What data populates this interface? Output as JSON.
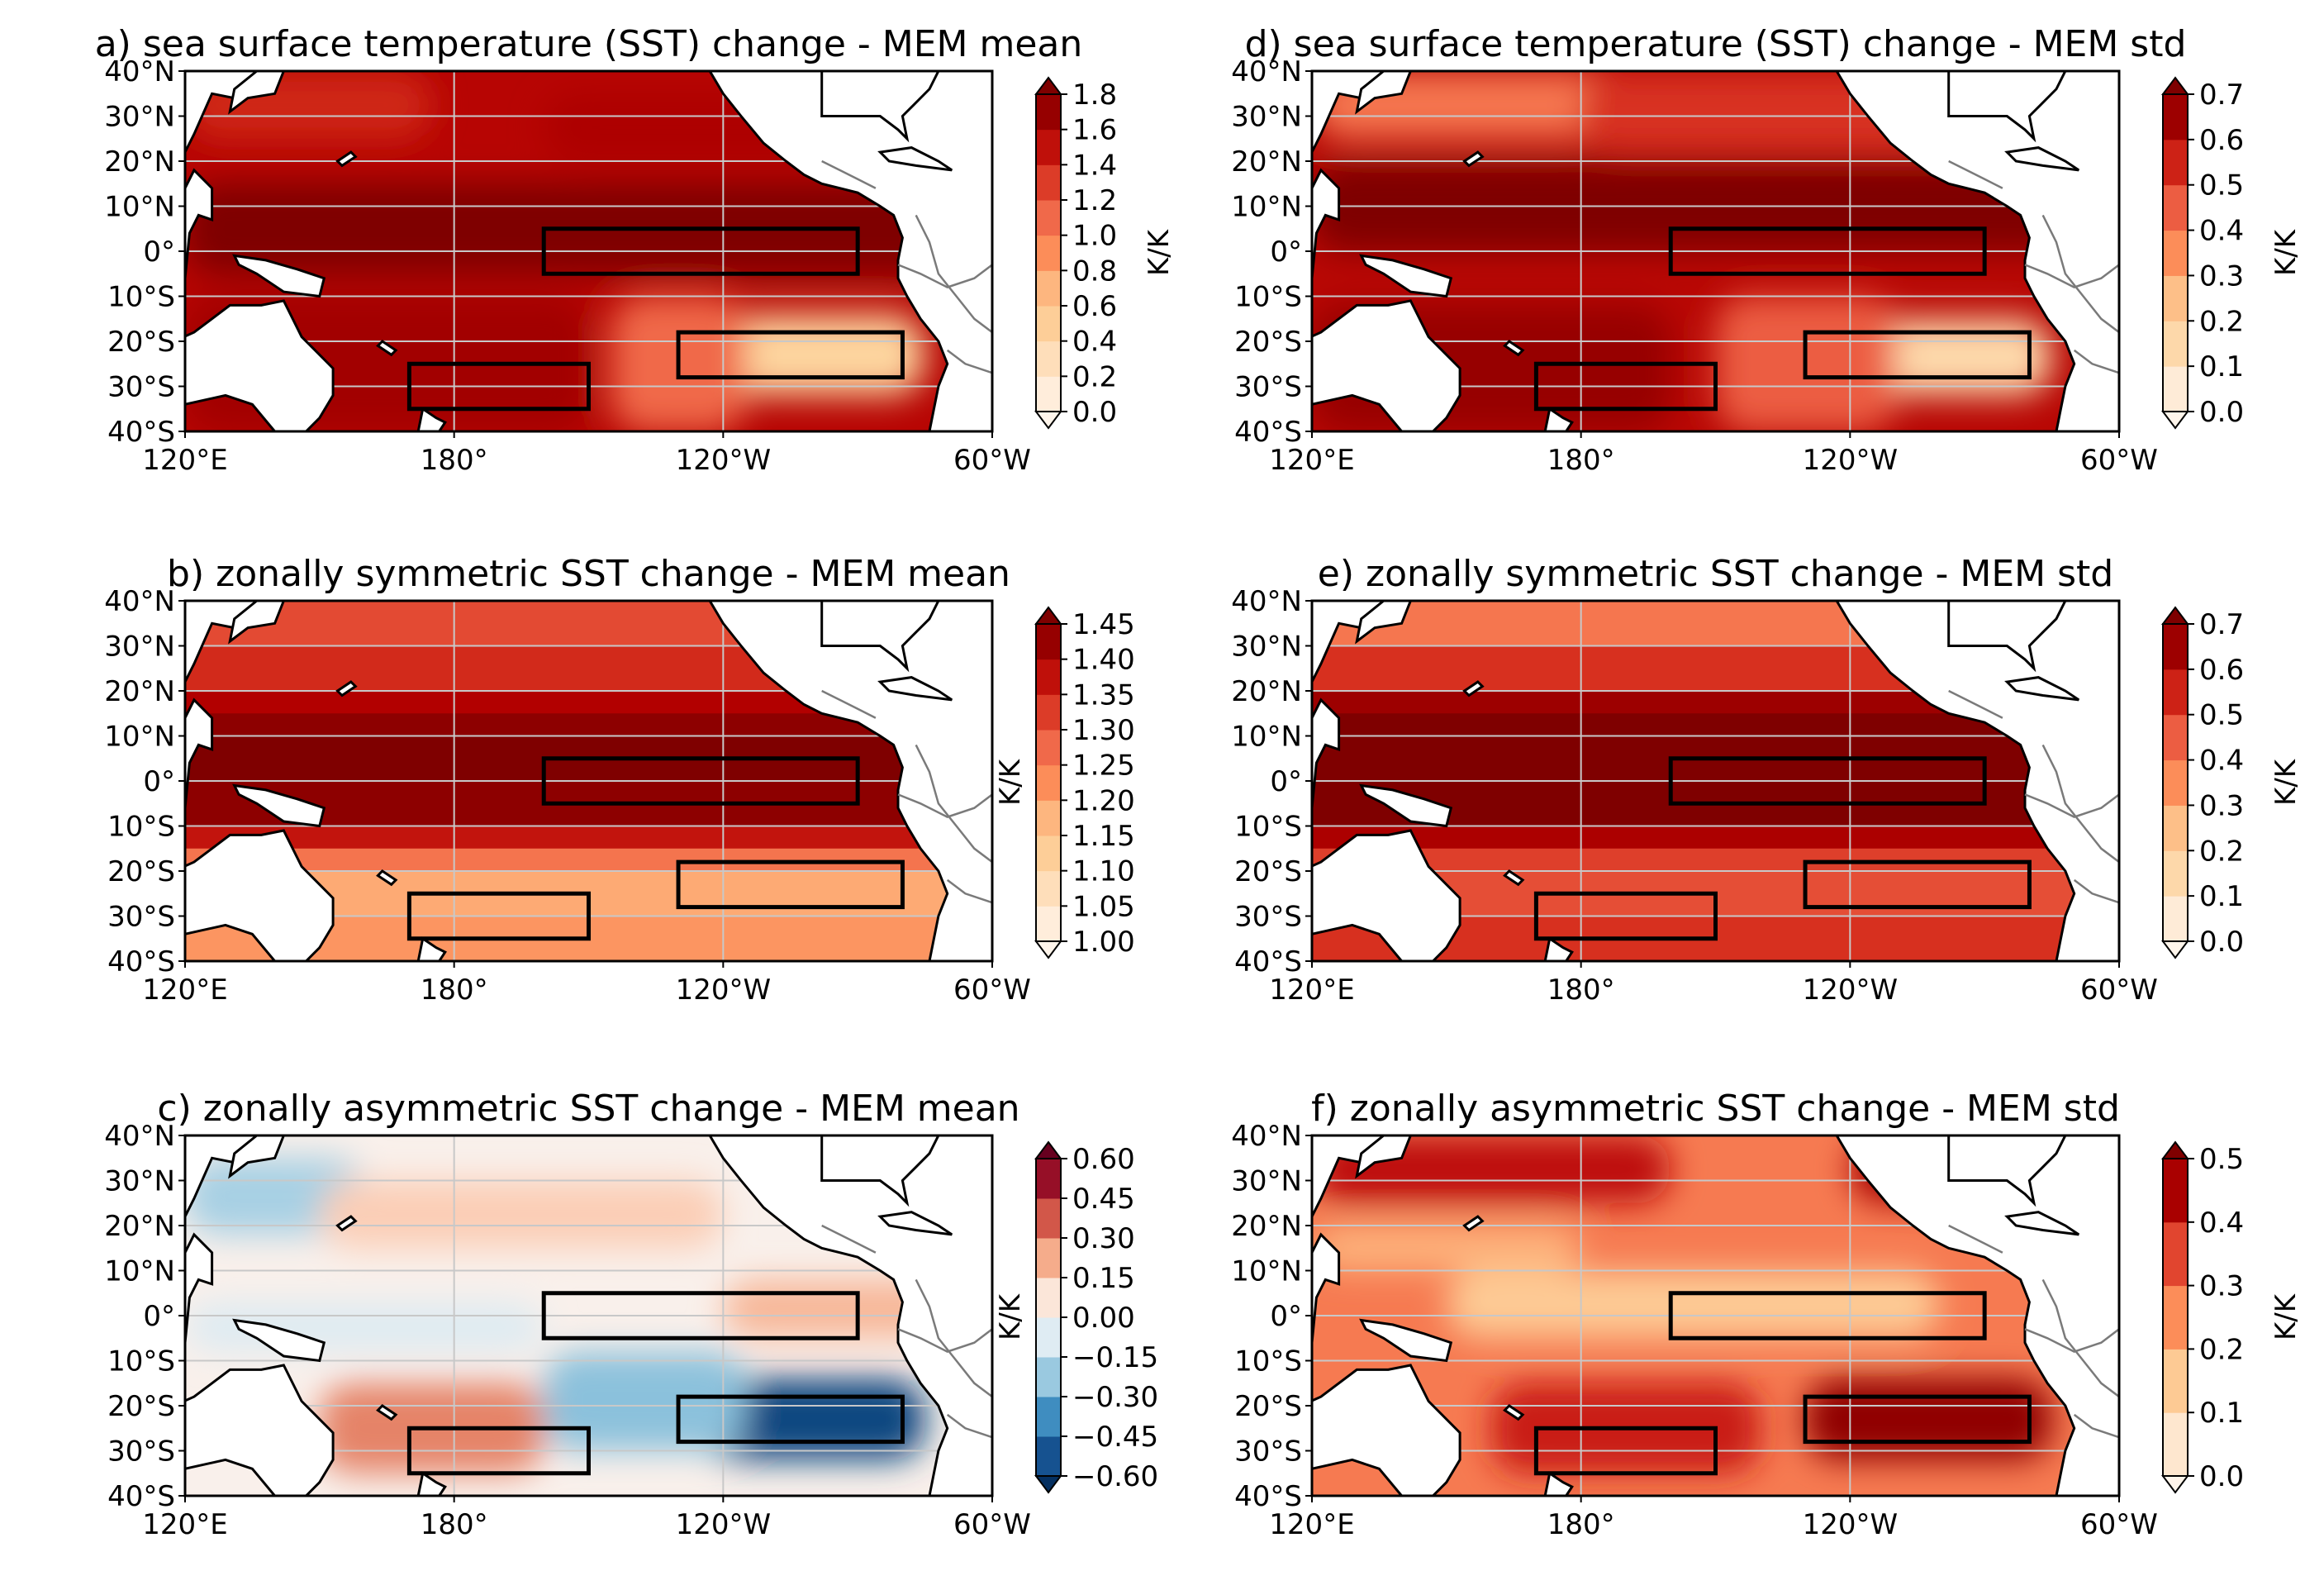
{
  "chart_data": [
    {
      "panel": "a",
      "type": "heatmap",
      "title": "a) sea surface temperature (SST) change - MEM mean",
      "cmap": "RdBu_r",
      "levels": [
        0.0,
        0.2,
        0.4,
        0.6,
        0.8,
        1.0,
        1.2,
        1.4,
        1.6,
        1.8
      ],
      "colorbar_ticks": [
        "0.0",
        "0.2",
        "0.4",
        "0.6",
        "0.8",
        "1.0",
        "1.2",
        "1.4",
        "1.6",
        "1.8"
      ],
      "colorbar_label": "K/K",
      "x_ticks": [
        "120°E",
        "180°",
        "120°W",
        "60°W"
      ],
      "y_ticks": [
        "40°N",
        "30°N",
        "20°N",
        "10°N",
        "0°",
        "10°S",
        "20°S",
        "30°S",
        "40°S"
      ],
      "regions": [
        {
          "lon": [
            120,
            180
          ],
          "lat": [
            20,
            40
          ],
          "value": 1.5
        },
        {
          "lon": [
            180,
            250
          ],
          "lat": [
            20,
            40
          ],
          "value": 1.6
        },
        {
          "lon": [
            120,
            290
          ],
          "lat": [
            -5,
            20
          ],
          "value": 1.7
        },
        {
          "lon": [
            120,
            200
          ],
          "lat": [
            -40,
            -5
          ],
          "value": 1.6
        },
        {
          "lon": [
            200,
            240
          ],
          "lat": [
            -40,
            -5
          ],
          "value": 1.4
        },
        {
          "lon": [
            240,
            285
          ],
          "lat": [
            -30,
            -15
          ],
          "value": 0.5
        },
        {
          "lon": [
            225,
            280
          ],
          "lat": [
            -40,
            -5
          ],
          "value": 1.1
        }
      ]
    },
    {
      "panel": "b",
      "type": "heatmap",
      "title": "b) zonally symmetric SST change - MEM mean",
      "cmap": "OrRd",
      "levels": [
        1.0,
        1.05,
        1.1,
        1.15,
        1.2,
        1.25,
        1.3,
        1.35,
        1.4,
        1.45
      ],
      "colorbar_ticks": [
        "1.00",
        "1.05",
        "1.10",
        "1.15",
        "1.20",
        "1.25",
        "1.30",
        "1.35",
        "1.40",
        "1.45"
      ],
      "colorbar_label": "K/K",
      "x_ticks": [
        "120°E",
        "180°",
        "120°W",
        "60°W"
      ],
      "y_ticks": [
        "40°N",
        "30°N",
        "20°N",
        "10°N",
        "0°",
        "10°S",
        "20°S",
        "30°S",
        "40°S"
      ],
      "zonal_profile": {
        "lat": [
          40,
          30,
          20,
          15,
          10,
          0,
          -10,
          -15,
          -20,
          -30,
          -40
        ],
        "value": [
          1.3,
          1.32,
          1.37,
          1.42,
          1.45,
          1.45,
          1.42,
          1.32,
          1.2,
          1.18,
          1.25
        ]
      }
    },
    {
      "panel": "c",
      "type": "heatmap",
      "title": "c) zonally asymmetric SST change -  MEM mean",
      "cmap": "RdBu_r",
      "levels": [
        -0.6,
        -0.45,
        -0.3,
        -0.15,
        0.0,
        0.15,
        0.3,
        0.45,
        0.6
      ],
      "colorbar_ticks": [
        "−0.60",
        "−0.45",
        "−0.30",
        "−0.15",
        "0.00",
        "0.15",
        "0.30",
        "0.45",
        "0.60"
      ],
      "colorbar_label": "K/K",
      "x_ticks": [
        "120°E",
        "180°",
        "120°W",
        "60°W"
      ],
      "y_ticks": [
        "40°N",
        "30°N",
        "20°N",
        "10°N",
        "0°",
        "10°S",
        "20°S",
        "30°S",
        "40°S"
      ]
    },
    {
      "panel": "d",
      "type": "heatmap",
      "title": "d) sea surface temperature (SST) change - MEM std",
      "cmap": "OrRd",
      "levels": [
        0.0,
        0.1,
        0.2,
        0.3,
        0.4,
        0.5,
        0.6,
        0.7
      ],
      "colorbar_ticks": [
        "0.0",
        "0.1",
        "0.2",
        "0.3",
        "0.4",
        "0.5",
        "0.6",
        "0.7"
      ],
      "colorbar_label": "K/K",
      "x_ticks": [
        "120°E",
        "180°",
        "120°W",
        "60°W"
      ],
      "y_ticks": [
        "40°N",
        "30°N",
        "20°N",
        "10°N",
        "0°",
        "10°S",
        "20°S",
        "30°S",
        "40°S"
      ]
    },
    {
      "panel": "e",
      "type": "heatmap",
      "title": "e) zonally symmetric SST change - MEM std",
      "cmap": "OrRd",
      "levels": [
        0.0,
        0.1,
        0.2,
        0.3,
        0.4,
        0.5,
        0.6,
        0.7
      ],
      "colorbar_ticks": [
        "0.0",
        "0.1",
        "0.2",
        "0.3",
        "0.4",
        "0.5",
        "0.6",
        "0.7"
      ],
      "colorbar_label": "K/K",
      "x_ticks": [
        "120°E",
        "180°",
        "120°W",
        "60°W"
      ],
      "y_ticks": [
        "40°N",
        "30°N",
        "20°N",
        "10°N",
        "0°",
        "10°S",
        "20°S",
        "30°S",
        "40°S"
      ]
    },
    {
      "panel": "f",
      "type": "heatmap",
      "title": "f) zonally asymmetric SST change -  MEM std",
      "cmap": "OrRd",
      "levels": [
        0.0,
        0.1,
        0.2,
        0.3,
        0.4,
        0.5
      ],
      "colorbar_ticks": [
        "0.0",
        "0.1",
        "0.2",
        "0.3",
        "0.4",
        "0.5"
      ],
      "colorbar_label": "K/K",
      "x_ticks": [
        "120°E",
        "180°",
        "120°W",
        "60°W"
      ],
      "y_ticks": [
        "40°N",
        "30°N",
        "20°N",
        "10°N",
        "0°",
        "10°S",
        "20°S",
        "30°S",
        "40°S"
      ]
    }
  ],
  "boxes": [
    {
      "name": "equatorial-east-box",
      "lon": [
        200,
        270
      ],
      "lat": [
        -5,
        5
      ]
    },
    {
      "name": "southeast-pacific-box",
      "lon": [
        230,
        280
      ],
      "lat": [
        -28,
        -18
      ]
    },
    {
      "name": "southwest-pacific-box",
      "lon": [
        170,
        210
      ],
      "lat": [
        -35,
        -25
      ]
    }
  ],
  "extent": {
    "lon": [
      120,
      300
    ],
    "lat": [
      -40,
      40
    ]
  },
  "colors": {
    "land": "#ffffff",
    "coastline": "#000000",
    "border": "#7a7a7a",
    "ramp_orrd": [
      "#fff5eb",
      "#fee3c8",
      "#fdd49e",
      "#fdbb84",
      "#fc8d59",
      "#ef6548",
      "#d7301f",
      "#b30000",
      "#7f0000"
    ],
    "ramp_div": [
      "#053061",
      "#2166ac",
      "#4393c3",
      "#92c5de",
      "#d1e5f0",
      "#f7f7f7",
      "#fddbc7",
      "#f4a582",
      "#d6604d",
      "#b2182b",
      "#67001f"
    ]
  }
}
